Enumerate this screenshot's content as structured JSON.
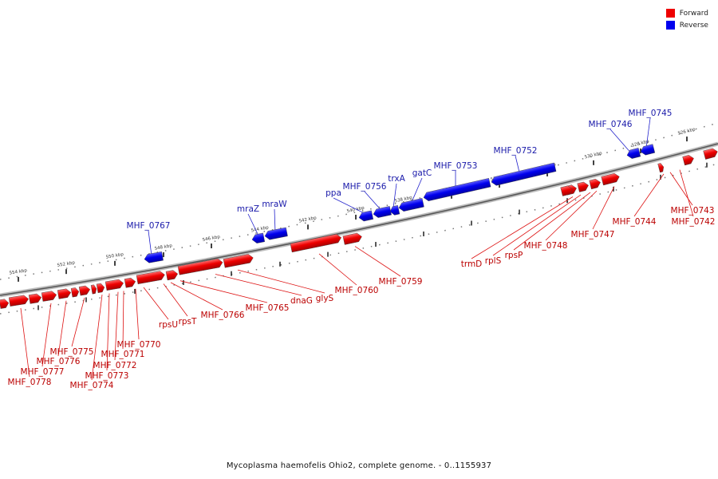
{
  "legend": {
    "forward": {
      "label": "Forward",
      "color": "#ee0000"
    },
    "reverse": {
      "label": "Reverse",
      "color": "#0000ee"
    }
  },
  "caption": "Mycoplasma haemofelis Ohio2, complete genome. - 0..1155937",
  "scale": {
    "ticks": [
      "526 kbp",
      "528 kbp",
      "530 kbp",
      "532 kbp",
      "534 kbp",
      "536 kbp",
      "538 kbp",
      "540 kbp",
      "542 kbp",
      "544 kbp",
      "546 kbp",
      "548 kbp",
      "550 kbp",
      "552 kbp",
      "554 kbp"
    ]
  },
  "genes": {
    "reverse": [
      "MHF_0745",
      "MHF_0746",
      "MHF_0752",
      "MHF_0753",
      "gatC",
      "trxA",
      "MHF_0756",
      "ppa",
      "mraW",
      "mraZ",
      "MHF_0767"
    ],
    "forward": [
      "MHF_0742",
      "MHF_0743",
      "MHF_0744",
      "MHF_0747",
      "MHF_0748",
      "rpsP",
      "rplS",
      "trmD",
      "MHF_0759",
      "MHF_0760",
      "glyS",
      "dnaG",
      "MHF_0765",
      "MHF_0766",
      "rpsT",
      "rpsU",
      "MHF_0770",
      "MHF_0771",
      "MHF_0772",
      "MHF_0773",
      "MHF_0774",
      "MHF_0775",
      "MHF_0776",
      "MHF_0777",
      "MHF_0778"
    ]
  }
}
